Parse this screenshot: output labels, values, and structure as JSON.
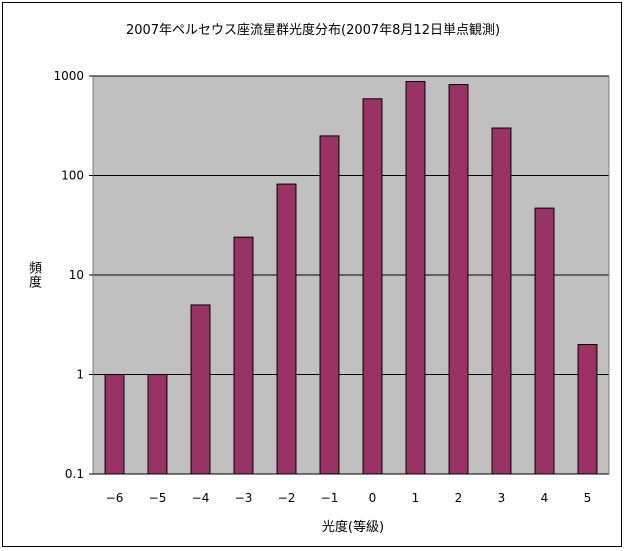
{
  "chart_data": {
    "type": "bar",
    "title": "2007年ペルセウス座流星群光度分布(2007年8月12日単点観測)",
    "xlabel": "光度(等級)",
    "ylabel": "頻度",
    "y_scale": "log",
    "ylim": [
      0.1,
      1000
    ],
    "y_ticks": [
      "0.1",
      "1",
      "10",
      "100",
      "1000"
    ],
    "categories": [
      "-6",
      "-5",
      "-4",
      "-3",
      "-2",
      "-1",
      "0",
      "1",
      "2",
      "3",
      "4",
      "5"
    ],
    "values": [
      1,
      1,
      5,
      24,
      82,
      250,
      590,
      880,
      820,
      300,
      47,
      2
    ],
    "grid": true,
    "legend": "none",
    "colors": {
      "bar": "#993366",
      "plot_background": "#c0c0c0",
      "gridline": "#000000"
    }
  }
}
